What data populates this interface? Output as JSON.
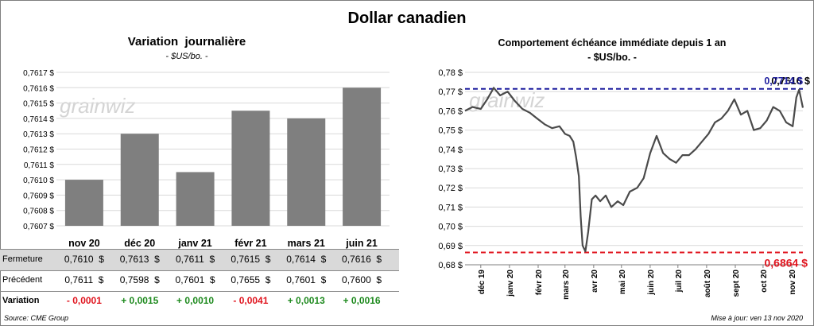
{
  "title": "Dollar canadien",
  "source": "Source: CME Group",
  "updated": "Mise à jour: ven 13 nov 2020",
  "watermark": "grainwiz",
  "colors": {
    "bar": "#7f7f7f",
    "line": "#4a4a4a",
    "high": "#1f1f9f",
    "low": "#e0141e",
    "neg": "#e0141e",
    "pos": "#1e8a1e"
  },
  "chart_data": [
    {
      "type": "bar",
      "title": "Variation  journalière",
      "subtitle": "- $US/bo. -",
      "categories": [
        "nov 20",
        "déc 20",
        "janv 21",
        "févr 21",
        "mars 21",
        "juin 21"
      ],
      "values": [
        0.761,
        0.7613,
        0.76105,
        0.76145,
        0.7614,
        0.7616
      ],
      "ylim": [
        0.7607,
        0.7617
      ],
      "yticks": [
        "0,7607 $",
        "0,7608 $",
        "0,7609 $",
        "0,7610 $",
        "0,7611 $",
        "0,7612 $",
        "0,7613 $",
        "0,7614 $",
        "0,7615 $",
        "0,7616 $",
        "0,7617 $"
      ],
      "grid": true
    },
    {
      "type": "line",
      "title": "Comportement échéance immédiate depuis 1 an",
      "subtitle": "- $US/bo. -",
      "ylim": [
        0.68,
        0.78
      ],
      "yticks": [
        "0,68 $",
        "0,69 $",
        "0,70 $",
        "0,71 $",
        "0,72 $",
        "0,73 $",
        "0,74 $",
        "0,75 $",
        "0,76 $",
        "0,77 $",
        "0,78 $"
      ],
      "xticks": [
        "déc 19",
        "janv 20",
        "févr 20",
        "mars 20",
        "avr 20",
        "mai 20",
        "juin 20",
        "juil 20",
        "août 20",
        "sept 20",
        "oct 20",
        "nov 20"
      ],
      "high": {
        "value": 0.7714,
        "label": "0,7714 $"
      },
      "low": {
        "value": 0.6864,
        "label": "0,6864 $"
      },
      "last": {
        "value": 0.7616,
        "label": "0,7616 $"
      },
      "x": [
        "2019-11-14",
        "2019-11-22",
        "2019-12-01",
        "2019-12-08",
        "2019-12-15",
        "2019-12-22",
        "2019-12-30",
        "2020-01-07",
        "2020-01-15",
        "2020-01-23",
        "2020-01-31",
        "2020-02-08",
        "2020-02-16",
        "2020-02-24",
        "2020-03-01",
        "2020-03-06",
        "2020-03-10",
        "2020-03-13",
        "2020-03-16",
        "2020-03-18",
        "2020-03-20",
        "2020-03-23",
        "2020-03-26",
        "2020-03-30",
        "2020-04-03",
        "2020-04-08",
        "2020-04-14",
        "2020-04-20",
        "2020-04-27",
        "2020-05-03",
        "2020-05-10",
        "2020-05-18",
        "2020-05-25",
        "2020-06-01",
        "2020-06-08",
        "2020-06-15",
        "2020-06-22",
        "2020-06-29",
        "2020-07-06",
        "2020-07-13",
        "2020-07-20",
        "2020-07-27",
        "2020-08-03",
        "2020-08-10",
        "2020-08-17",
        "2020-08-24",
        "2020-08-31",
        "2020-09-07",
        "2020-09-14",
        "2020-09-21",
        "2020-09-28",
        "2020-10-05",
        "2020-10-12",
        "2020-10-19",
        "2020-10-26",
        "2020-11-02",
        "2020-11-06",
        "2020-11-09",
        "2020-11-13"
      ],
      "y": [
        0.76,
        0.762,
        0.761,
        0.766,
        0.772,
        0.768,
        0.77,
        0.765,
        0.761,
        0.759,
        0.756,
        0.753,
        0.751,
        0.752,
        0.748,
        0.747,
        0.744,
        0.736,
        0.726,
        0.705,
        0.69,
        0.687,
        0.697,
        0.714,
        0.716,
        0.713,
        0.716,
        0.71,
        0.713,
        0.711,
        0.718,
        0.72,
        0.725,
        0.738,
        0.747,
        0.738,
        0.735,
        0.733,
        0.737,
        0.737,
        0.74,
        0.744,
        0.748,
        0.754,
        0.756,
        0.76,
        0.766,
        0.758,
        0.76,
        0.75,
        0.751,
        0.755,
        0.762,
        0.76,
        0.754,
        0.752,
        0.767,
        0.771,
        0.7616
      ]
    }
  ],
  "table": {
    "rows": [
      {
        "label": "Fermeture",
        "cells": [
          "0,7610  $",
          "0,7613  $",
          "0,7611  $",
          "0,7615  $",
          "0,7614  $",
          "0,7616  $"
        ]
      },
      {
        "label": "Précédent",
        "cells": [
          "0,7611  $",
          "0,7598  $",
          "0,7601  $",
          "0,7655  $",
          "0,7601  $",
          "0,7600  $"
        ]
      },
      {
        "label": "Variation",
        "cells": [
          "- 0,0001",
          "+ 0,0015",
          "+ 0,0010",
          "- 0,0041",
          "+ 0,0013",
          "+ 0,0016"
        ],
        "signs": [
          "neg",
          "pos",
          "pos",
          "neg",
          "pos",
          "pos"
        ]
      }
    ]
  }
}
